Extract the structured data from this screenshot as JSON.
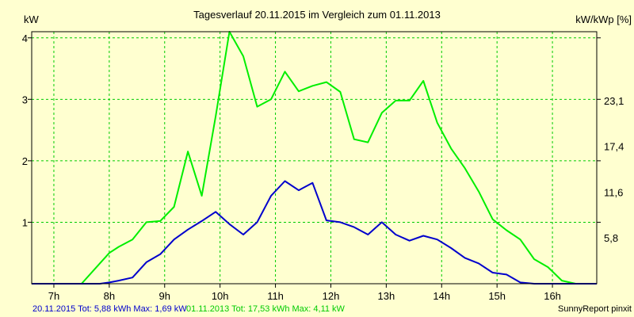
{
  "chart_data": {
    "type": "line",
    "title": "Tagesverlauf 20.11.2015 im Vergleich zum 01.11.2013",
    "ylabel": "kW",
    "y2label": "kW/kWp [%]",
    "xlim": [
      6.6,
      16.8
    ],
    "ylim": [
      0,
      4.1
    ],
    "grid": true,
    "x_ticks": [
      7,
      8,
      9,
      10,
      11,
      12,
      13,
      14,
      15,
      16
    ],
    "x_tick_labels": [
      "7h",
      "8h",
      "9h",
      "10h",
      "11h",
      "12h",
      "13h",
      "14h",
      "15h",
      "16h"
    ],
    "y_ticks": [
      1,
      2,
      3,
      4
    ],
    "y_tick_labels": [
      "1",
      "2",
      "3",
      "4"
    ],
    "y2_ticks": [
      0.745,
      1.49,
      2.235,
      2.98
    ],
    "y2_tick_labels": [
      "5,8",
      "11,6",
      "17,4",
      "23,1"
    ],
    "series": [
      {
        "name": "20.11.2015",
        "color": "#0000cc",
        "x": [
          6.6,
          7.4,
          7.5,
          7.83,
          8.0,
          8.17,
          8.42,
          8.67,
          8.92,
          9.17,
          9.42,
          9.67,
          9.92,
          10.17,
          10.42,
          10.67,
          10.92,
          11.17,
          11.42,
          11.67,
          11.92,
          12.17,
          12.42,
          12.67,
          12.92,
          13.17,
          13.42,
          13.67,
          13.92,
          14.17,
          14.42,
          14.67,
          14.92,
          15.17,
          15.42,
          15.67,
          15.92,
          16.17,
          16.42,
          16.8
        ],
        "y": [
          0,
          0,
          0,
          0,
          0.02,
          0.05,
          0.1,
          0.35,
          0.48,
          0.72,
          0.88,
          1.02,
          1.17,
          0.97,
          0.8,
          1.0,
          1.43,
          1.67,
          1.52,
          1.64,
          1.03,
          1.0,
          0.92,
          0.8,
          1.0,
          0.8,
          0.7,
          0.78,
          0.72,
          0.58,
          0.42,
          0.33,
          0.18,
          0.15,
          0.02,
          0,
          0,
          0,
          0,
          0
        ]
      },
      {
        "name": "01.11.2013",
        "color": "#00ee00",
        "x": [
          6.6,
          7.4,
          7.5,
          7.75,
          8.0,
          8.17,
          8.42,
          8.67,
          8.92,
          9.17,
          9.42,
          9.67,
          9.92,
          10.17,
          10.42,
          10.67,
          10.92,
          11.17,
          11.42,
          11.67,
          11.92,
          12.17,
          12.42,
          12.67,
          12.92,
          13.17,
          13.42,
          13.67,
          13.92,
          14.17,
          14.42,
          14.67,
          14.92,
          15.17,
          15.42,
          15.67,
          15.92,
          16.17,
          16.42,
          16.67,
          16.8
        ],
        "y": [
          0,
          0,
          0,
          0.25,
          0.5,
          0.6,
          0.72,
          1.0,
          1.02,
          1.25,
          2.15,
          1.43,
          2.72,
          4.1,
          3.7,
          2.88,
          3.0,
          3.45,
          3.13,
          3.22,
          3.28,
          3.12,
          2.35,
          2.3,
          2.78,
          2.98,
          2.98,
          3.3,
          2.62,
          2.2,
          1.88,
          1.5,
          1.05,
          0.87,
          0.72,
          0.4,
          0.27,
          0.05,
          0,
          0,
          0
        ]
      }
    ],
    "footer_left": "20.11.2015 Tot: 5,88 kWh Max: 1,69 kW",
    "footer_mid": "01.11.2013 Tot: 17,53 kWh Max: 4,11 kW",
    "footer_right": "SunnyReport pinxit"
  }
}
